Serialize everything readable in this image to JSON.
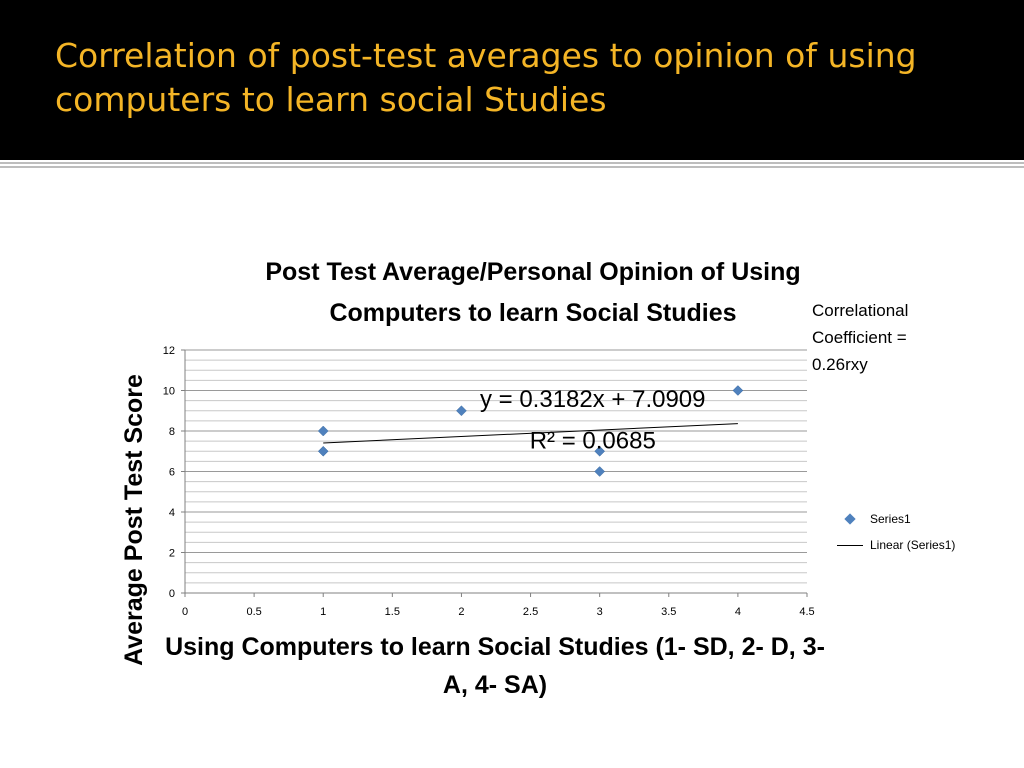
{
  "slide": {
    "title": "Correlation of post-test averages to opinion of using computers to learn social Studies"
  },
  "annotation": {
    "correlation_note": "Correlational Coefficient = 0.26rxy"
  },
  "chart_data": {
    "type": "scatter",
    "title": "Post Test Average/Personal Opinion of Using Computers to learn Social Studies",
    "xlabel": "Using Computers to learn Social Studies (1- SD, 2- D, 3- A, 4- SA)",
    "ylabel": "Average Post Test Score",
    "xlim": [
      0,
      4.5
    ],
    "ylim": [
      0,
      12
    ],
    "x_ticks": [
      "0",
      "0.5",
      "1",
      "1.5",
      "2",
      "2.5",
      "3",
      "3.5",
      "4",
      "4.5"
    ],
    "y_ticks": [
      "0",
      "2",
      "4",
      "6",
      "8",
      "10",
      "12"
    ],
    "grid": true,
    "legend_position": "right",
    "series": [
      {
        "name": "Series1",
        "color": "#4f81bd",
        "marker": "diamond",
        "points": [
          {
            "x": 1,
            "y": 8
          },
          {
            "x": 1,
            "y": 7
          },
          {
            "x": 2,
            "y": 9
          },
          {
            "x": 3,
            "y": 7
          },
          {
            "x": 3,
            "y": 6
          },
          {
            "x": 4,
            "y": 10
          }
        ]
      }
    ],
    "trendline": {
      "name": "Linear (Series1)",
      "slope": 0.3182,
      "intercept": 7.0909,
      "x_range": [
        1,
        4
      ],
      "color": "#000000",
      "equation": "y = 0.3182x + 7.0909",
      "r_squared": "R² = 0.0685"
    }
  }
}
